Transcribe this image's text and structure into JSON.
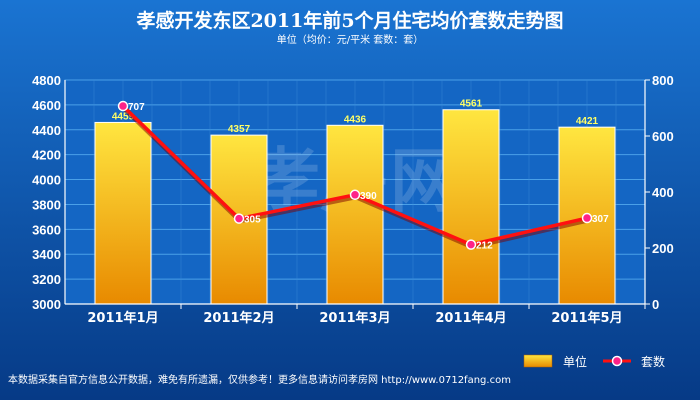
{
  "header": {
    "title": "孝感开发东区2011年前5个月住宅均价套数走势图",
    "subtitle": "单位（均价：元/平米   套数：套）"
  },
  "watermark": "孝房网",
  "legend": {
    "bar_label": "单位",
    "line_label": "套数"
  },
  "footer": {
    "text": "本数据采集自官方信息公开数据，难免有所遗漏，仅供参考！更多信息请访问孝房网 http://www.0712fang.com"
  },
  "colors": {
    "background_top": "#0e5fb8",
    "background_bottom": "#06357e",
    "plot_background": "#1466c4",
    "grid": "#4aa0e8",
    "bar_top": "#ffe640",
    "bar_bottom": "#e88a00",
    "line": "#ff1010",
    "marker": "#ff2288"
  },
  "chart_data": {
    "type": "bar",
    "title": "孝感开发东区2011年前5个月住宅均价套数走势图",
    "subtitle": "单位（均价：元/平米   套数：套）",
    "categories": [
      "2011年1月",
      "2011年2月",
      "2011年3月",
      "2011年4月",
      "2011年5月"
    ],
    "series": [
      {
        "name": "单位",
        "type": "bar",
        "axis": "left",
        "values": [
          4459,
          4357,
          4436,
          4561,
          4421
        ]
      },
      {
        "name": "套数",
        "type": "line",
        "axis": "right",
        "values": [
          707,
          305,
          390,
          212,
          307
        ]
      }
    ],
    "ylim": [
      3000,
      4800
    ],
    "yticks": [
      3000,
      3200,
      3400,
      3600,
      3800,
      4000,
      4200,
      4400,
      4600,
      4800
    ],
    "y2lim": [
      0,
      800
    ],
    "y2ticks": [
      0,
      200,
      400,
      600,
      800
    ],
    "grid": true,
    "legend_position": "bottom-right"
  }
}
